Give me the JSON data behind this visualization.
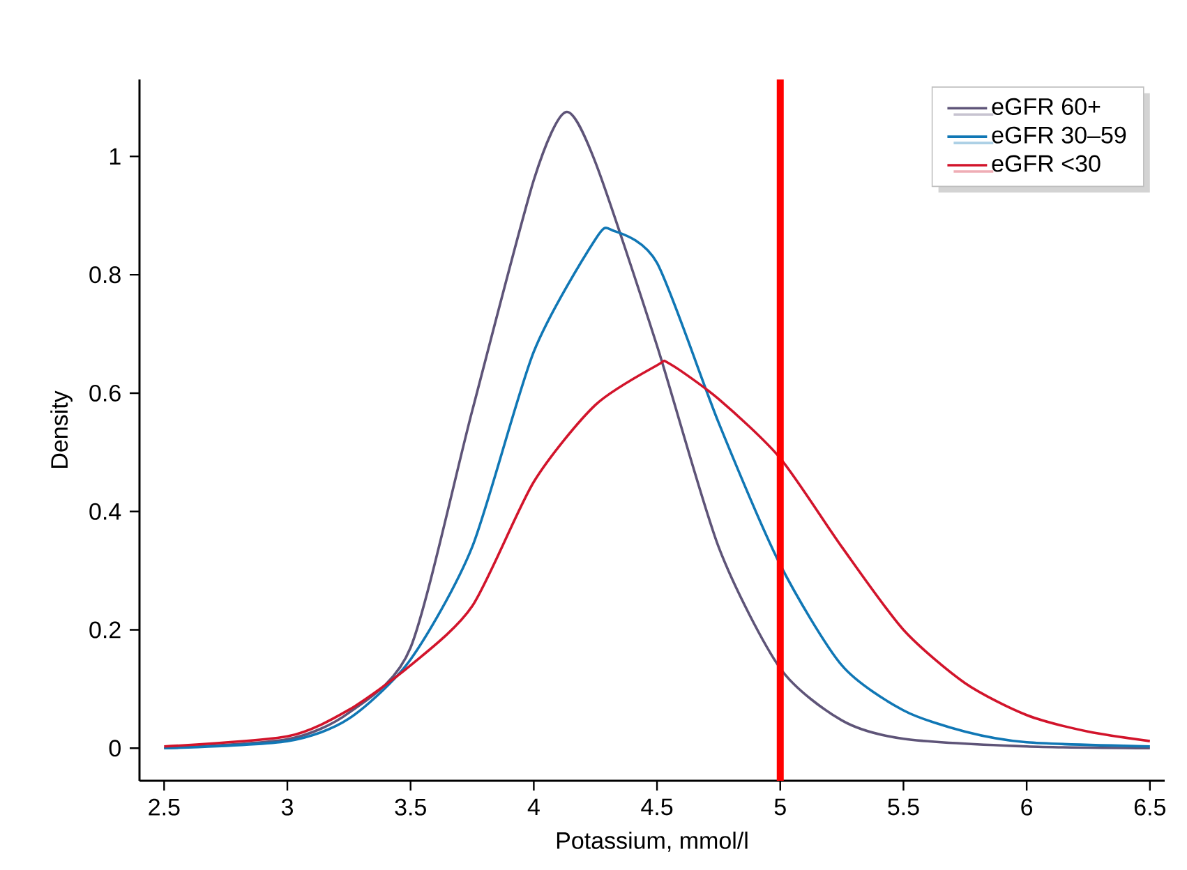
{
  "chart_data": {
    "type": "line",
    "xlabel": "Potassium, mmol/l",
    "ylabel": "Density",
    "xlim": [
      2.4,
      6.56
    ],
    "ylim": [
      -0.055,
      1.13
    ],
    "xticks": [
      2.5,
      3,
      3.5,
      4,
      4.5,
      5,
      5.5,
      6,
      6.5
    ],
    "yticks": [
      0,
      0.2,
      0.4,
      0.6,
      0.8,
      1
    ],
    "legend": "top right",
    "grid": false,
    "marker": "none",
    "line_style": "solid",
    "ref_lines": [
      {
        "axis": "x",
        "value": 5,
        "color": "#ff0000"
      }
    ],
    "series": [
      {
        "name": "eGFR 60+",
        "color": "#5e5478",
        "x": [
          2.5,
          3,
          3.25,
          3.5,
          3.75,
          4,
          4.13,
          4.25,
          4.5,
          4.75,
          5,
          5.25,
          5.5,
          6,
          6.5
        ],
        "values": [
          0,
          0.015,
          0.06,
          0.17,
          0.57,
          0.96,
          1.075,
          0.99,
          0.68,
          0.34,
          0.135,
          0.047,
          0.016,
          0.003,
          0
        ]
      },
      {
        "name": "eGFR 30–59",
        "color": "#1077b5",
        "x": [
          2.5,
          3,
          3.25,
          3.5,
          3.75,
          4,
          4.25,
          4.32,
          4.5,
          4.75,
          5,
          5.25,
          5.5,
          5.75,
          6,
          6.5
        ],
        "values": [
          0,
          0.012,
          0.05,
          0.15,
          0.34,
          0.67,
          0.86,
          0.875,
          0.82,
          0.55,
          0.31,
          0.14,
          0.064,
          0.028,
          0.01,
          0.003
        ]
      },
      {
        "name": "eGFR <30",
        "color": "#d2142b",
        "x": [
          2.5,
          3,
          3.25,
          3.5,
          3.75,
          4,
          4.25,
          4.5,
          4.55,
          4.75,
          5,
          5.25,
          5.5,
          5.75,
          6,
          6.25,
          6.5
        ],
        "values": [
          0.003,
          0.02,
          0.065,
          0.14,
          0.24,
          0.45,
          0.58,
          0.647,
          0.65,
          0.59,
          0.49,
          0.34,
          0.2,
          0.11,
          0.056,
          0.028,
          0.012
        ]
      }
    ]
  }
}
